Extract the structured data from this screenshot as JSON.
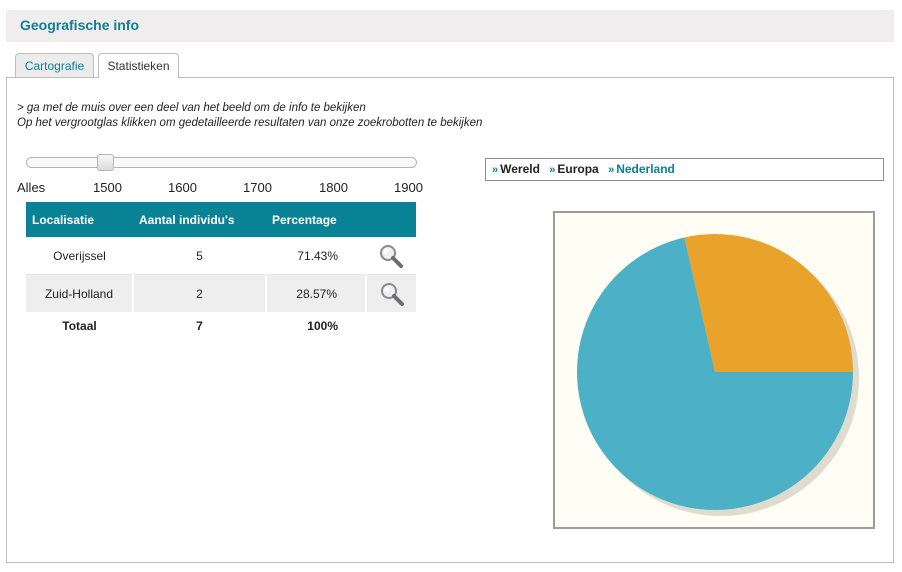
{
  "header": {
    "title": "Geografische info"
  },
  "tabs": [
    {
      "label": "Cartografie"
    },
    {
      "label": "Statistieken"
    }
  ],
  "instructions": {
    "line1": "> ga met de muis over een deel van het beeld om de info te bekijken",
    "line2": "Op het vergrootglas klikken om gedetailleerde resultaten van onze zoekrobotten te bekijken"
  },
  "slider": {
    "ticks": [
      "Alles",
      "1500",
      "1600",
      "1700",
      "1800",
      "1900"
    ],
    "selected": "1500"
  },
  "table": {
    "headers": [
      "Localisatie",
      "Aantal individu's",
      "Percentage"
    ],
    "rows": [
      {
        "place": "Overijssel",
        "count": "5",
        "percent": "71.43%"
      },
      {
        "place": "Zuid-Holland",
        "count": "2",
        "percent": "28.57%"
      }
    ],
    "total": {
      "label": "Totaal",
      "count": "7",
      "percent": "100%"
    }
  },
  "breadcrumb": [
    {
      "label": "Wereld"
    },
    {
      "label": "Europa"
    },
    {
      "label": "Nederland"
    }
  ],
  "icons": {
    "zoom": "magnifier-icon",
    "crumb_arrow": "double-chevron-right-icon"
  },
  "colors": {
    "accent": "#0e7f94",
    "table_header": "#0a8296",
    "slice_overijssel": "#4cb1c6",
    "slice_zuid_holland": "#e9a32b"
  },
  "chart_data": {
    "type": "pie",
    "categories": [
      "Overijssel",
      "Zuid-Holland"
    ],
    "values": [
      71.43,
      28.57
    ]
  }
}
